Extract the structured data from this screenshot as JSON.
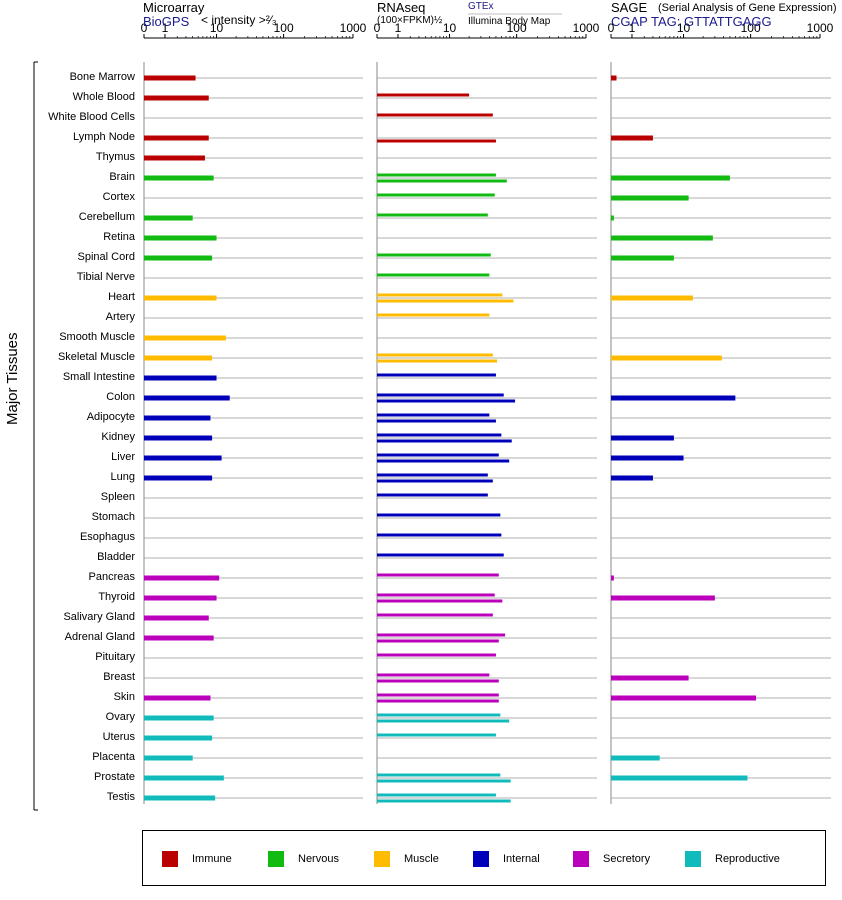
{
  "panels": [
    {
      "id": "microarray",
      "title": "Microarray",
      "subtitle": "BioGPS",
      "note": "< intensity >²⁄₃",
      "gtex": "",
      "ibm": "",
      "ticks": [
        "0",
        "1",
        "10",
        "100",
        "1000"
      ]
    },
    {
      "id": "rnaseq",
      "title": "RNAseq",
      "subtitle": "",
      "note": "(100×FPKM)½",
      "gtex": "GTEx",
      "ibm": "Illumina Body Map",
      "ticks": [
        "0",
        "1",
        "10",
        "100",
        "1000"
      ]
    },
    {
      "id": "sage",
      "title": "SAGE",
      "subtitle": "CGAP TAG: GTTATTGAGG",
      "note": "(Serial Analysis of Gene Expression)",
      "gtex": "",
      "ibm": "",
      "ticks": [
        "0",
        "1",
        "10",
        "100",
        "1000"
      ]
    }
  ],
  "side_label": "Major Tissues",
  "colors": {
    "Immune": "#bb0000",
    "Nervous": "#11bb11",
    "Muscle": "#ffbb00",
    "Internal": "#0000bb",
    "Secretory": "#bb00bb",
    "Reproductive": "#11bbbb"
  },
  "legend": [
    {
      "name": "Immune",
      "color": "#bb0000"
    },
    {
      "name": "Nervous",
      "color": "#11bb11"
    },
    {
      "name": "Muscle",
      "color": "#ffbb00"
    },
    {
      "name": "Internal",
      "color": "#0000bb"
    },
    {
      "name": "Secretory",
      "color": "#bb00bb"
    },
    {
      "name": "Reproductive",
      "color": "#11bbbb"
    }
  ],
  "chart_data": {
    "type": "bar",
    "xscale": "log",
    "xlim": [
      0,
      1000
    ],
    "categories": [
      "Bone Marrow",
      "Whole Blood",
      "White Blood Cells",
      "Lymph Node",
      "Thymus",
      "Brain",
      "Cortex",
      "Cerebellum",
      "Retina",
      "Spinal Cord",
      "Tibial Nerve",
      "Heart",
      "Artery",
      "Smooth Muscle",
      "Skeletal Muscle",
      "Small Intestine",
      "Colon",
      "Adipocyte",
      "Kidney",
      "Liver",
      "Lung",
      "Spleen",
      "Stomach",
      "Esophagus",
      "Bladder",
      "Pancreas",
      "Thyroid",
      "Salivary Gland",
      "Adrenal Gland",
      "Pituitary",
      "Breast",
      "Skin",
      "Ovary",
      "Uterus",
      "Placenta",
      "Prostate",
      "Testis"
    ],
    "groups": [
      "Immune",
      "Immune",
      "Immune",
      "Immune",
      "Immune",
      "Nervous",
      "Nervous",
      "Nervous",
      "Nervous",
      "Nervous",
      "Nervous",
      "Muscle",
      "Muscle",
      "Muscle",
      "Muscle",
      "Internal",
      "Internal",
      "Internal",
      "Internal",
      "Internal",
      "Internal",
      "Internal",
      "Internal",
      "Internal",
      "Internal",
      "Secretory",
      "Secretory",
      "Secretory",
      "Secretory",
      "Secretory",
      "Secretory",
      "Secretory",
      "Reproductive",
      "Reproductive",
      "Reproductive",
      "Reproductive",
      "Reproductive"
    ],
    "microarray": [
      4.5,
      7.5,
      null,
      7.5,
      6.5,
      9,
      null,
      4,
      10,
      8.5,
      null,
      10,
      null,
      14,
      8.5,
      10,
      16,
      8,
      8.5,
      12,
      8.5,
      null,
      null,
      null,
      null,
      11,
      10,
      7.5,
      9,
      null,
      null,
      8,
      9,
      8.5,
      4,
      13,
      9.5
    ],
    "rnaseq_gtex": [
      null,
      20,
      45,
      null,
      null,
      50,
      48,
      38,
      null,
      42,
      40,
      62,
      40,
      null,
      45,
      50,
      65,
      40,
      60,
      55,
      38,
      38,
      58,
      60,
      65,
      55,
      48,
      45,
      68,
      50,
      40,
      55,
      58,
      50,
      null,
      58,
      50
    ],
    "rnaseq_ibm": [
      null,
      null,
      null,
      50,
      null,
      72,
      null,
      null,
      null,
      null,
      null,
      90,
      null,
      null,
      52,
      null,
      95,
      50,
      85,
      78,
      45,
      null,
      null,
      null,
      null,
      null,
      62,
      null,
      55,
      null,
      55,
      55,
      78,
      null,
      null,
      82,
      82
    ],
    "sage": [
      0.2,
      null,
      null,
      3,
      null,
      50,
      12,
      0.1,
      28,
      7,
      null,
      14,
      null,
      null,
      38,
      null,
      60,
      null,
      7,
      10,
      3,
      null,
      null,
      null,
      null,
      0.1,
      30,
      null,
      null,
      null,
      12,
      120,
      null,
      null,
      4,
      90,
      null
    ]
  }
}
